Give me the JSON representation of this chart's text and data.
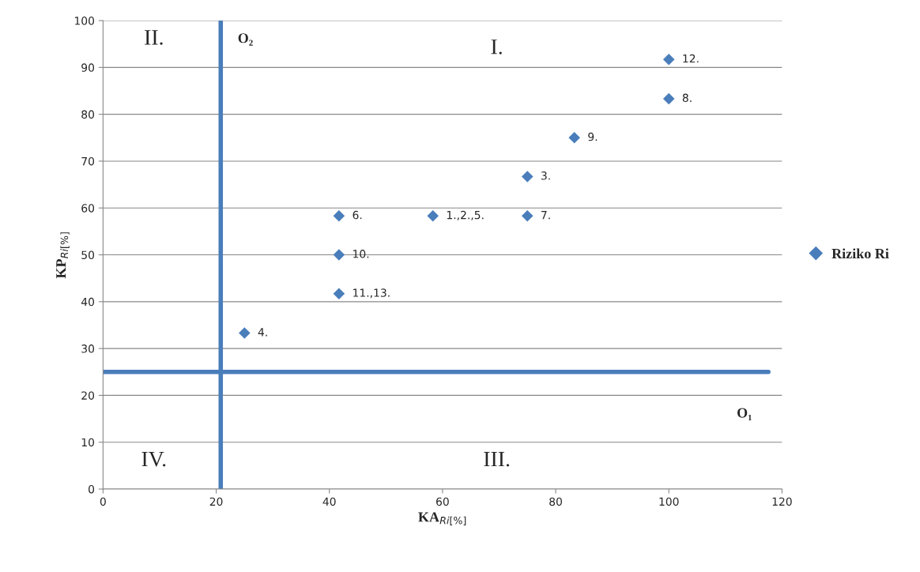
{
  "chart_data": {
    "type": "scatter",
    "xlabel": "KA$_{Ri[%]}$",
    "ylabel": "KP$_{Ri[%]}$",
    "series": [
      {
        "name": "Riziko Ri",
        "color": "#4a7ebb",
        "x": [
          100,
          100,
          83.3,
          75,
          75,
          58.3,
          41.7,
          41.7,
          41.7,
          25
        ],
        "values": [
          91.7,
          83.3,
          75,
          66.7,
          58.3,
          58.3,
          58.3,
          50,
          41.7,
          33.3
        ]
      }
    ],
    "xlim": [
      0,
      120
    ],
    "xticks": [
      0,
      20,
      40,
      60,
      80,
      100,
      120
    ],
    "ylim": [
      0,
      100
    ],
    "yticks": [
      0,
      10,
      20,
      30,
      40,
      50,
      60,
      70,
      80,
      90,
      100
    ],
    "ref_lines": [
      {
        "axis": "x",
        "value": 20.8,
        "label": "O₂",
        "color": "#4a7ebb"
      },
      {
        "axis": "y",
        "value": 25,
        "label": "O₁",
        "color": "#4a7ebb"
      }
    ],
    "annotations": [
      "I.",
      "II.",
      "III.",
      "IV.",
      {
        "text": "12.",
        "x": 100,
        "y": 91.7
      },
      {
        "text": "8.",
        "x": 100,
        "y": 83.3
      },
      {
        "text": "9.",
        "x": 83.3,
        "y": 75
      },
      {
        "text": "3.",
        "x": 75,
        "y": 66.7
      },
      {
        "text": "7.",
        "x": 75,
        "y": 58.3
      },
      {
        "text": "1.,2.,5.",
        "x": 58.3,
        "y": 58.3
      },
      {
        "text": "6.",
        "x": 41.7,
        "y": 58.3
      },
      {
        "text": "10.",
        "x": 41.7,
        "y": 50
      },
      {
        "text": "11.,13.",
        "x": 41.7,
        "y": 41.7
      },
      {
        "text": "4.",
        "x": 25,
        "y": 33.3
      }
    ],
    "marker": "diamond",
    "grid": "y",
    "legend": "right"
  }
}
